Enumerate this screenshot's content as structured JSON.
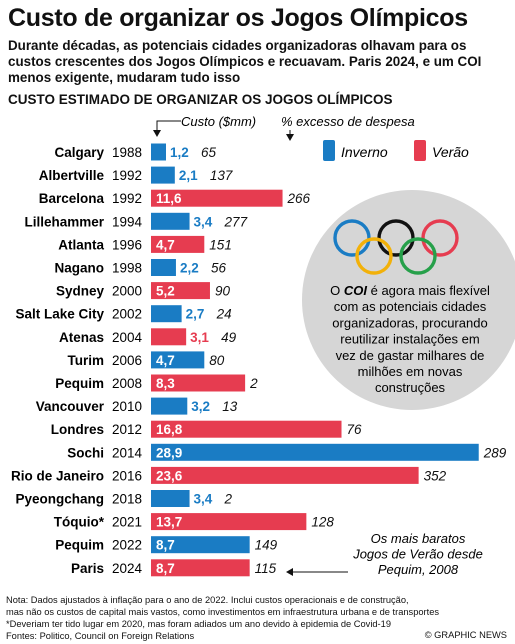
{
  "header": {
    "title": "Custo de organizar os Jogos Olímpicos",
    "subtitle": "Durante décadas, as potenciais cidades organizadoras olhavam para os custos crescentes dos Jogos Olímpicos e recuavam. Paris 2024, e um COI menos exigente, mudaram tudo isso",
    "section_title": "CUSTO ESTIMADO DE ORGANIZAR OS JOGOS OLÍMPICOS"
  },
  "colors": {
    "winter": "#1a7cc4",
    "summer": "#e63c50",
    "overrun": "#111111",
    "circle": "#d6d6d6"
  },
  "chart_data": {
    "type": "bar",
    "orientation": "horizontal",
    "column_labels": {
      "cost": "Custo ($mm)",
      "overrun": "% excesso de despesa"
    },
    "legend": [
      {
        "name": "Inverno",
        "season": "winter"
      },
      {
        "name": "Verão",
        "season": "summer"
      }
    ],
    "legend_position": "top-right",
    "xlim": [
      0,
      30
    ],
    "rows": [
      {
        "city": "Calgary",
        "year": "1988",
        "season": "winter",
        "cost": 1.2,
        "cost_label": "1,2",
        "overrun": 65
      },
      {
        "city": "Albertville",
        "year": "1992",
        "season": "winter",
        "cost": 2.1,
        "cost_label": "2,1",
        "overrun": 137
      },
      {
        "city": "Barcelona",
        "year": "1992",
        "season": "summer",
        "cost": 11.6,
        "cost_label": "11,6",
        "overrun": 266
      },
      {
        "city": "Lillehammer",
        "year": "1994",
        "season": "winter",
        "cost": 3.4,
        "cost_label": "3,4",
        "overrun": 277
      },
      {
        "city": "Atlanta",
        "year": "1996",
        "season": "summer",
        "cost": 4.7,
        "cost_label": "4,7",
        "overrun": 151
      },
      {
        "city": "Nagano",
        "year": "1998",
        "season": "winter",
        "cost": 2.2,
        "cost_label": "2,2",
        "overrun": 56
      },
      {
        "city": "Sydney",
        "year": "2000",
        "season": "summer",
        "cost": 5.2,
        "cost_label": "5,2",
        "overrun": 90
      },
      {
        "city": "Salt Lake City",
        "year": "2002",
        "season": "winter",
        "cost": 2.7,
        "cost_label": "2,7",
        "overrun": 24
      },
      {
        "city": "Atenas",
        "year": "2004",
        "season": "summer",
        "cost": 3.1,
        "cost_label": "3,1",
        "overrun": 49
      },
      {
        "city": "Turim",
        "year": "2006",
        "season": "winter",
        "cost": 4.7,
        "cost_label": "4,7",
        "overrun": 80
      },
      {
        "city": "Pequim",
        "year": "2008",
        "season": "summer",
        "cost": 8.3,
        "cost_label": "8,3",
        "overrun": 2
      },
      {
        "city": "Vancouver",
        "year": "2010",
        "season": "winter",
        "cost": 3.2,
        "cost_label": "3,2",
        "overrun": 13
      },
      {
        "city": "Londres",
        "year": "2012",
        "season": "summer",
        "cost": 16.8,
        "cost_label": "16,8",
        "overrun": 76
      },
      {
        "city": "Sochi",
        "year": "2014",
        "season": "winter",
        "cost": 28.9,
        "cost_label": "28,9",
        "overrun": 289
      },
      {
        "city": "Rio de Janeiro",
        "year": "2016",
        "season": "summer",
        "cost": 23.6,
        "cost_label": "23,6",
        "overrun": 352
      },
      {
        "city": "Pyeongchang",
        "year": "2018",
        "season": "winter",
        "cost": 3.4,
        "cost_label": "3,4",
        "overrun": 2
      },
      {
        "city": "Tóquio*",
        "year": "2021",
        "season": "summer",
        "cost": 13.7,
        "cost_label": "13,7",
        "overrun": 128
      },
      {
        "city": "Pequim",
        "year": "2022",
        "season": "winter",
        "cost": 8.7,
        "cost_label": "8,7",
        "overrun": 149
      },
      {
        "city": "Paris",
        "year": "2024",
        "season": "summer",
        "cost": 8.7,
        "cost_label": "8,7",
        "overrun": 115
      }
    ],
    "annotations": {
      "coi_prefix": "O ",
      "coi_bold": "COI",
      "coi_lines": [
        " é agora mais flexível",
        "com as potenciais cidades",
        "organizadoras, procurando",
        "reutilizar instalações em",
        "vez de gastar milhares de",
        "milhões em novas",
        "construções"
      ],
      "cheapest_lines": [
        "Os mais baratos",
        "Jogos de Verão desde",
        "Pequim, 2008"
      ]
    }
  },
  "footer": {
    "note_lines": [
      "Nota: Dados ajustados à inflação para o ano de 2022. Inclui custos operacionais e de construção,",
      "mas não os custos de capital mais vastos, como investimentos em infraestrutura urbana e de transportes",
      "*Deveriam ter tido lugar em 2020, mas foram adiados um ano devido à epidemia de Covid-19",
      "Fontes: Politico, Council on Foreign Relations"
    ],
    "credit": "© GRAPHIC NEWS"
  }
}
